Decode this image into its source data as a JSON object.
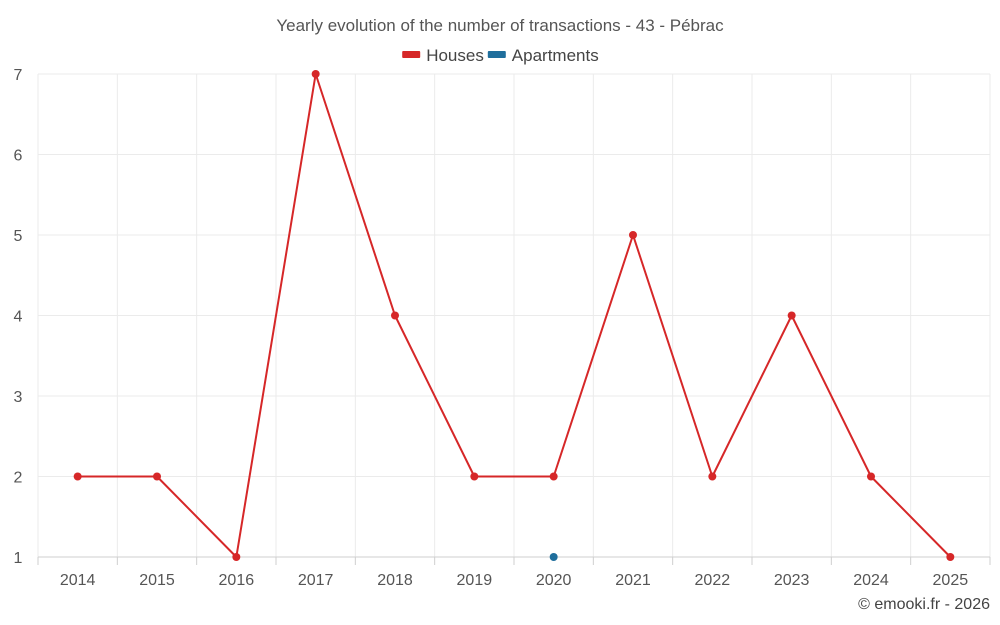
{
  "chart_data": {
    "type": "line",
    "title": "Yearly evolution of the number of transactions - 43 - Pébrac",
    "xlabel": "",
    "ylabel": "",
    "categories": [
      "2014",
      "2015",
      "2016",
      "2017",
      "2018",
      "2019",
      "2020",
      "2021",
      "2022",
      "2023",
      "2024",
      "2025"
    ],
    "ylim": [
      1,
      7
    ],
    "yticks": [
      1,
      2,
      3,
      4,
      5,
      6,
      7
    ],
    "grid": true,
    "legend_position": "top-center",
    "series": [
      {
        "name": "Houses",
        "color": "#d62728",
        "values": [
          2,
          2,
          1,
          7,
          4,
          2,
          2,
          5,
          2,
          4,
          2,
          1
        ]
      },
      {
        "name": "Apartments",
        "color": "#1f6e9c",
        "values": [
          null,
          null,
          null,
          null,
          null,
          null,
          1,
          null,
          null,
          null,
          null,
          null
        ]
      }
    ],
    "credit": "© emooki.fr - 2026"
  }
}
